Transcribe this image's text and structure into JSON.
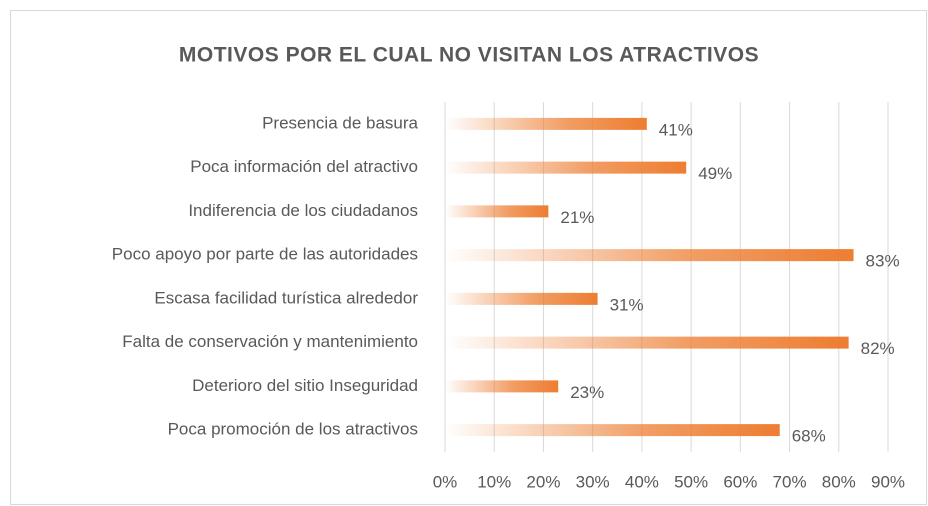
{
  "chart_data": {
    "type": "bar",
    "orientation": "horizontal",
    "title": "MOTIVOS POR EL CUAL NO VISITAN LOS ATRACTIVOS",
    "categories": [
      "Presencia de basura",
      "Poca información del atractivo",
      "Indiferencia de los ciudadanos",
      "Poco apoyo por parte de las autoridades",
      "Escasa facilidad turística alrededor",
      "Falta de conservación y mantenimiento",
      "Deterioro del sitio Inseguridad",
      "Poca promoción de los atractivos"
    ],
    "values": [
      41,
      49,
      21,
      83,
      31,
      82,
      23,
      68
    ],
    "value_labels": [
      "41%",
      "49%",
      "21%",
      "83%",
      "31%",
      "82%",
      "23%",
      "68%"
    ],
    "color": "#ed7d31",
    "xlim": [
      0,
      90
    ],
    "xticks": [
      {
        "value": 0,
        "label": "0%"
      },
      {
        "value": 10,
        "label": "10%"
      },
      {
        "value": 20,
        "label": "20%"
      },
      {
        "value": 30,
        "label": "30%"
      },
      {
        "value": 40,
        "label": "40%"
      },
      {
        "value": 50,
        "label": "50%"
      },
      {
        "value": 60,
        "label": "60%"
      },
      {
        "value": 70,
        "label": "70%"
      },
      {
        "value": 80,
        "label": "80%"
      },
      {
        "value": 90,
        "label": "90%"
      }
    ],
    "grid": true
  }
}
